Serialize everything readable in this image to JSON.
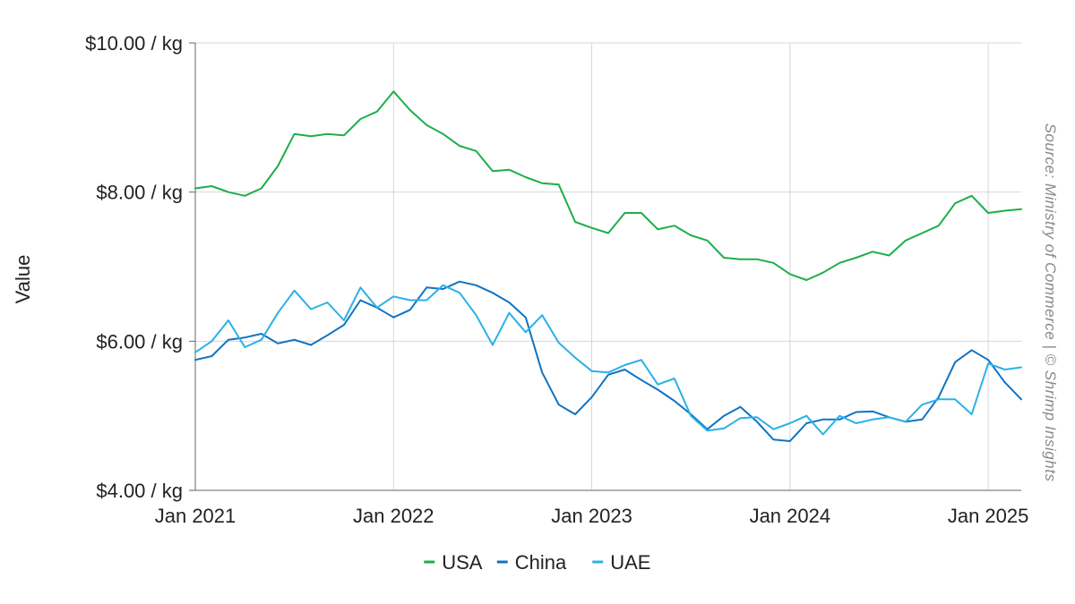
{
  "chart_data": {
    "type": "line",
    "title": "",
    "xlabel": "",
    "ylabel": "Value",
    "source": "Source: Ministry of Commerce | © Shrimp Insights",
    "y_ticks": [
      {
        "value": 10,
        "label": "$10.00 / kg"
      },
      {
        "value": 8,
        "label": "$8.00 / kg"
      },
      {
        "value": 6,
        "label": "$6.00 / kg"
      },
      {
        "value": 4,
        "label": "$4.00 / kg"
      }
    ],
    "x_ticks": [
      {
        "value": 0,
        "label": "Jan 2021"
      },
      {
        "value": 12,
        "label": "Jan 2022"
      },
      {
        "value": 24,
        "label": "Jan 2023"
      },
      {
        "value": 36,
        "label": "Jan 2024"
      },
      {
        "value": 48,
        "label": "Jan 2025"
      }
    ],
    "ylim": [
      4,
      10
    ],
    "xlim": [
      0,
      50
    ],
    "grid": true,
    "legend_position": "bottom",
    "series": [
      {
        "name": "USA",
        "color": "#1eae4b",
        "values": [
          8.05,
          8.08,
          8.0,
          7.95,
          8.05,
          8.35,
          8.78,
          8.75,
          8.78,
          8.76,
          8.98,
          9.08,
          9.35,
          9.1,
          8.9,
          8.78,
          8.62,
          8.55,
          8.28,
          8.3,
          8.2,
          8.12,
          8.1,
          7.6,
          7.52,
          7.45,
          7.72,
          7.72,
          7.5,
          7.55,
          7.42,
          7.35,
          7.12,
          7.1,
          7.1,
          7.05,
          6.9,
          6.82,
          6.92,
          7.05,
          7.12,
          7.2,
          7.15,
          7.35,
          7.45,
          7.55,
          7.85,
          7.95,
          7.72,
          7.75,
          7.77
        ]
      },
      {
        "name": "China",
        "color": "#1073c2",
        "values": [
          5.75,
          5.8,
          6.02,
          6.05,
          6.1,
          5.97,
          6.02,
          5.95,
          6.08,
          6.22,
          6.55,
          6.45,
          6.32,
          6.42,
          6.72,
          6.7,
          6.8,
          6.75,
          6.65,
          6.52,
          6.32,
          5.58,
          5.15,
          5.02,
          5.25,
          5.55,
          5.62,
          5.48,
          5.35,
          5.2,
          5.02,
          4.82,
          5.0,
          5.12,
          4.92,
          4.68,
          4.66,
          4.9,
          4.95,
          4.95,
          5.05,
          5.06,
          4.98,
          4.92,
          4.95,
          5.25,
          5.72,
          5.88,
          5.75,
          5.45,
          5.22
        ]
      },
      {
        "name": "UAE",
        "color": "#2bb1e6",
        "values": [
          5.85,
          6.0,
          6.28,
          5.92,
          6.02,
          6.38,
          6.68,
          6.43,
          6.52,
          6.28,
          6.72,
          6.45,
          6.6,
          6.55,
          6.55,
          6.75,
          6.65,
          6.35,
          5.95,
          6.38,
          6.12,
          6.35,
          5.98,
          5.78,
          5.6,
          5.58,
          5.68,
          5.75,
          5.42,
          5.5,
          5.0,
          4.8,
          4.83,
          4.97,
          4.98,
          4.82,
          4.9,
          5.0,
          4.75,
          5.0,
          4.9,
          4.95,
          4.98,
          4.92,
          5.15,
          5.22,
          5.22,
          5.02,
          5.7,
          5.62,
          5.65
        ]
      }
    ]
  }
}
